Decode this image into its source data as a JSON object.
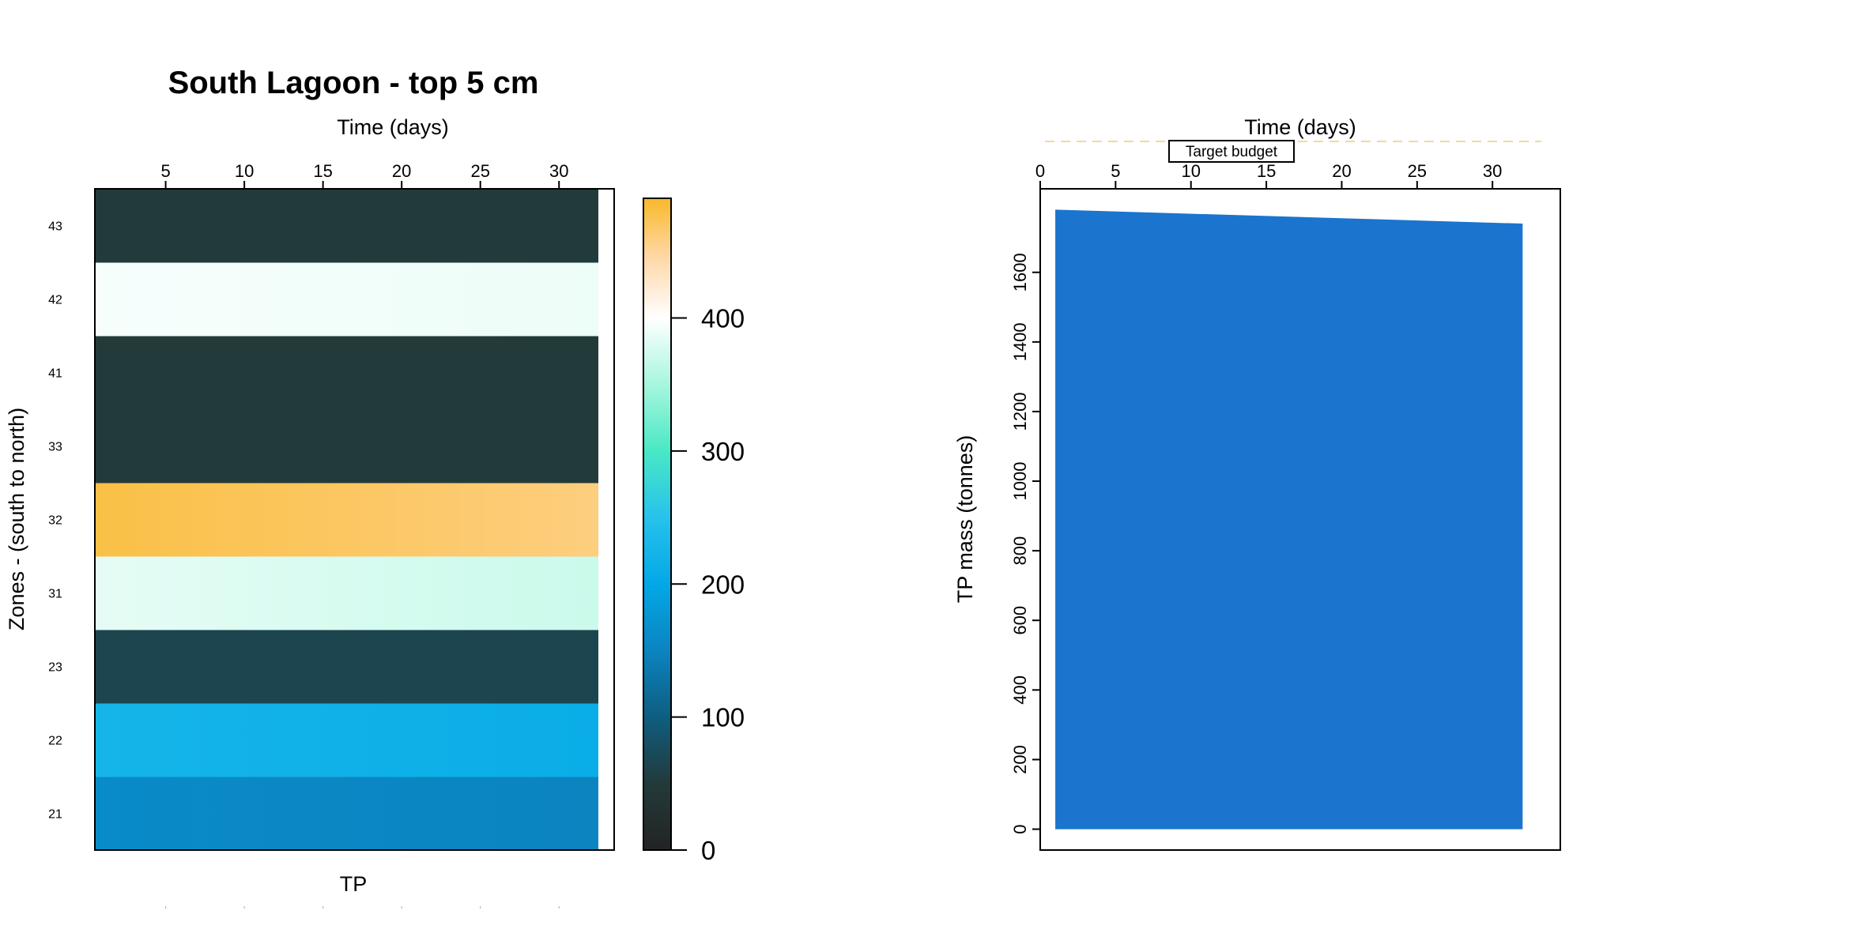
{
  "chart_data": [
    {
      "type": "heatmap",
      "title": "South Lagoon - top 5 cm",
      "xlabel": "Time (days)",
      "ylabel": "Zones - (south to north)",
      "bottom_label": "TP",
      "xlim": [
        0.5,
        32.5
      ],
      "x_ticks": [
        5,
        10,
        15,
        20,
        25,
        30
      ],
      "zones": [
        "21",
        "22",
        "23",
        "31",
        "32",
        "33",
        "41",
        "42",
        "43"
      ],
      "cells": [
        {
          "zone": "21",
          "start_value": 160,
          "end_value": 150
        },
        {
          "zone": "22",
          "start_value": 225,
          "end_value": 210
        },
        {
          "zone": "23",
          "start_value": 65,
          "end_value": 65
        },
        {
          "zone": "31",
          "start_value": 385,
          "end_value": 370
        },
        {
          "zone": "32",
          "start_value": 480,
          "end_value": 460
        },
        {
          "zone": "33",
          "start_value": 50,
          "end_value": 50
        },
        {
          "zone": "41",
          "start_value": 50,
          "end_value": 50
        },
        {
          "zone": "42",
          "start_value": 395,
          "end_value": 390
        },
        {
          "zone": "43",
          "start_value": 50,
          "end_value": 50
        }
      ],
      "colorbar": {
        "range": [
          0,
          490
        ],
        "ticks": [
          0,
          100,
          200,
          300,
          400
        ],
        "tick_labels": [
          "0",
          "100",
          "200",
          "300",
          "400"
        ],
        "stops": [
          {
            "value": 0,
            "color": "#232323"
          },
          {
            "value": 50,
            "color": "#233a3a"
          },
          {
            "value": 100,
            "color": "#0e5e80"
          },
          {
            "value": 150,
            "color": "#0b84c0"
          },
          {
            "value": 200,
            "color": "#03a8e6"
          },
          {
            "value": 250,
            "color": "#27c2ec"
          },
          {
            "value": 300,
            "color": "#49e8c5"
          },
          {
            "value": 350,
            "color": "#a7f6de"
          },
          {
            "value": 400,
            "color": "#ffffff"
          },
          {
            "value": 445,
            "color": "#ffd8a8"
          },
          {
            "value": 490,
            "color": "#f9b92a"
          }
        ]
      }
    },
    {
      "type": "area",
      "title": "",
      "xlabel": "Time (days)",
      "ylabel": "TP mass (tonnes)",
      "xlim": [
        0,
        34.5
      ],
      "ylim": [
        -60,
        1840
      ],
      "x_ticks": [
        0,
        5,
        10,
        15,
        20,
        25,
        30
      ],
      "y_ticks": [
        0,
        200,
        400,
        600,
        800,
        1000,
        1200,
        1400,
        1600
      ],
      "series": [
        {
          "x": [
            1,
            32
          ],
          "y": [
            1780,
            1740
          ],
          "color": "#1b74cd"
        }
      ],
      "reference_line": {
        "label": "Target budget",
        "value": 1890,
        "color": "#f0d9a0",
        "style": "dashed"
      },
      "legend": {
        "placement": "top",
        "entries": [
          "Target budget"
        ]
      }
    }
  ]
}
